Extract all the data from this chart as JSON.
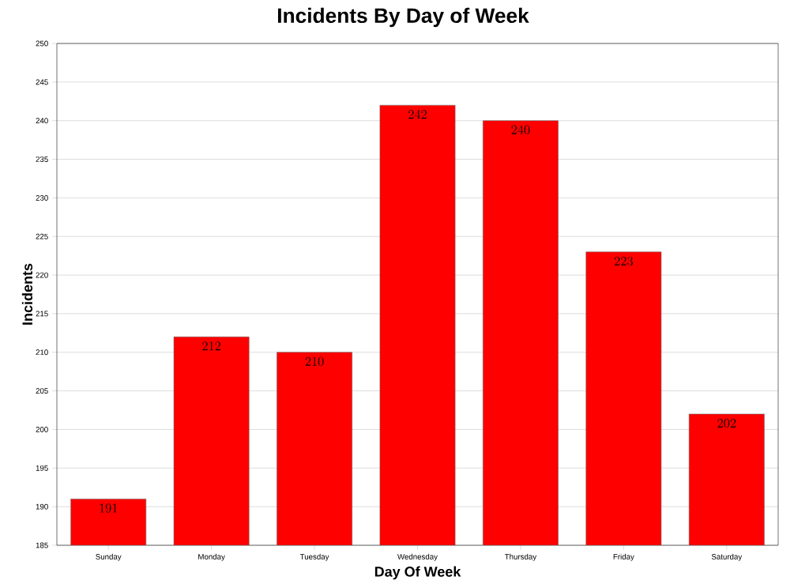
{
  "chart_data": {
    "type": "bar",
    "title": "Incidents By Day of Week",
    "xlabel": "Day Of Week",
    "ylabel": "Incidents",
    "categories": [
      "Sunday",
      "Monday",
      "Tuesday",
      "Wednesday",
      "Thursday",
      "Friday",
      "Saturday"
    ],
    "values": [
      191,
      212,
      210,
      242,
      240,
      223,
      202
    ],
    "color": "#ff0000",
    "ylim": [
      185,
      250
    ],
    "yticks": [
      185,
      190,
      195,
      200,
      205,
      210,
      215,
      220,
      225,
      230,
      235,
      240,
      245,
      250
    ],
    "grid": "y",
    "data_labels": true
  }
}
